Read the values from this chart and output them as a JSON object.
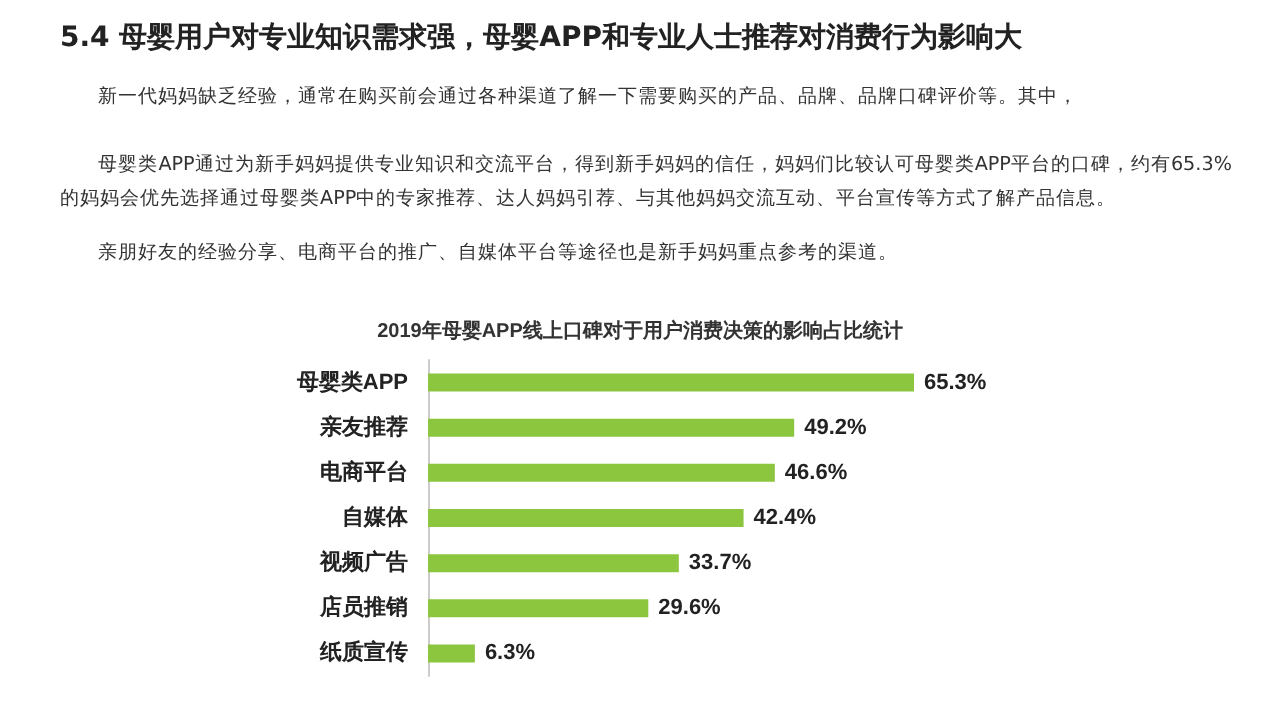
{
  "chart_data": {
    "type": "bar",
    "orientation": "horizontal",
    "title": "5.4 母婴用户对专业知识需求强，母婴APP和专业人士推荐对消费行为影响大",
    "subtitle": "2019年母婴APP线上口碑对于用户消费决策的影响占比统计",
    "annotations": [
      "新一代妈妈缺乏经验，通常在购买前会通过各种渠道了解一下需要购买的产品、品牌、品牌口碑评价等。其中，",
      "母婴类APP通过为新手妈妈提供专业知识和交流平台，得到新手妈妈的信任，妈妈们比较认可母婴类APP平台的口碑，约有65.3%的妈妈会优先选择通过母婴类APP中的专家推荐、达人妈妈引荐、与其他妈妈交流互动、平台宣传等方式了解产品信息。",
      "亲朋好友的经验分享、电商平台的推广、自媒体平台等途径也是新手妈妈重点参考的渠道。"
    ],
    "categories": [
      "母婴类APP",
      "亲友推荐",
      "电商平台",
      "自媒体",
      "视频广告",
      "店员推销",
      "纸质宣传"
    ],
    "values": [
      65.3,
      49.2,
      46.6,
      42.4,
      33.7,
      29.6,
      6.3
    ],
    "value_labels": [
      "65.3%",
      "49.2%",
      "46.6%",
      "42.4%",
      "33.7%",
      "29.6%",
      "6.3%"
    ],
    "color": "#8cc63f",
    "tick_labels": "y"
  }
}
